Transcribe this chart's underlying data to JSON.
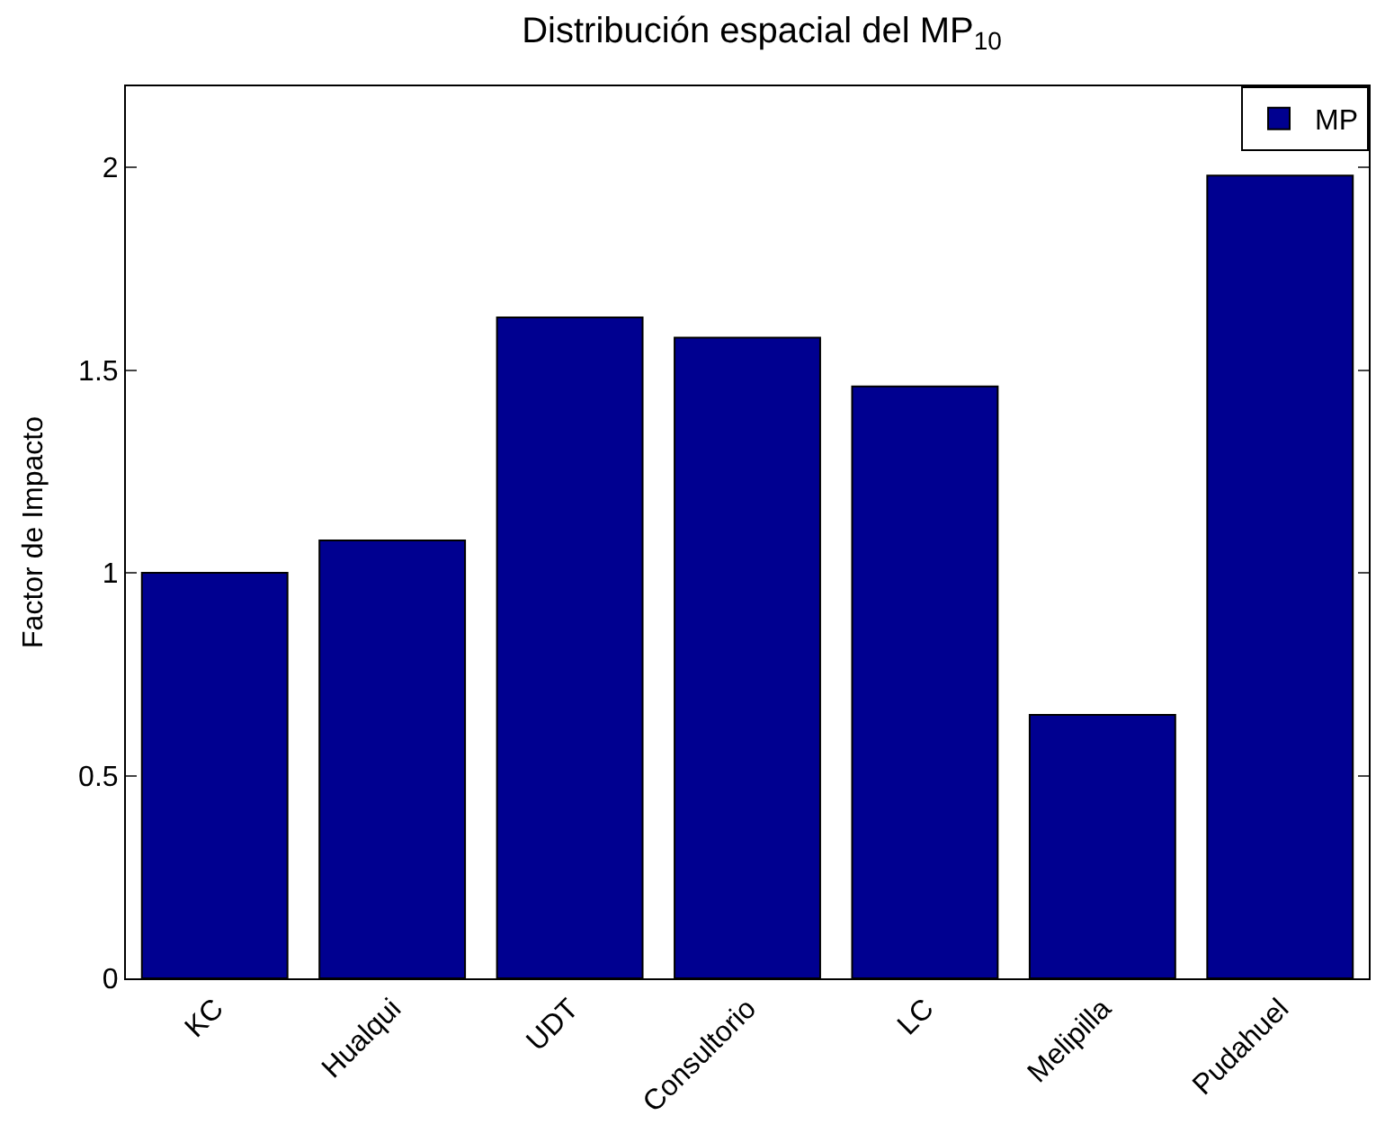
{
  "chart_data": {
    "type": "bar",
    "title": "Distribución espacial del MP$_{10}$",
    "ylabel": "Factor de Impacto",
    "categories": [
      "KC",
      "Hualqui",
      "UDT",
      "Consultorio",
      "LC",
      "Melipilla",
      "Pudahuel"
    ],
    "series": [
      {
        "name": "MP",
        "color": "#000090",
        "values": [
          1.0,
          1.08,
          1.63,
          1.58,
          1.46,
          0.65,
          1.98
        ]
      }
    ],
    "ylim": [
      0,
      2.2
    ],
    "yticks": [
      0,
      0.5,
      1,
      1.5,
      2
    ],
    "legend": "top right"
  }
}
